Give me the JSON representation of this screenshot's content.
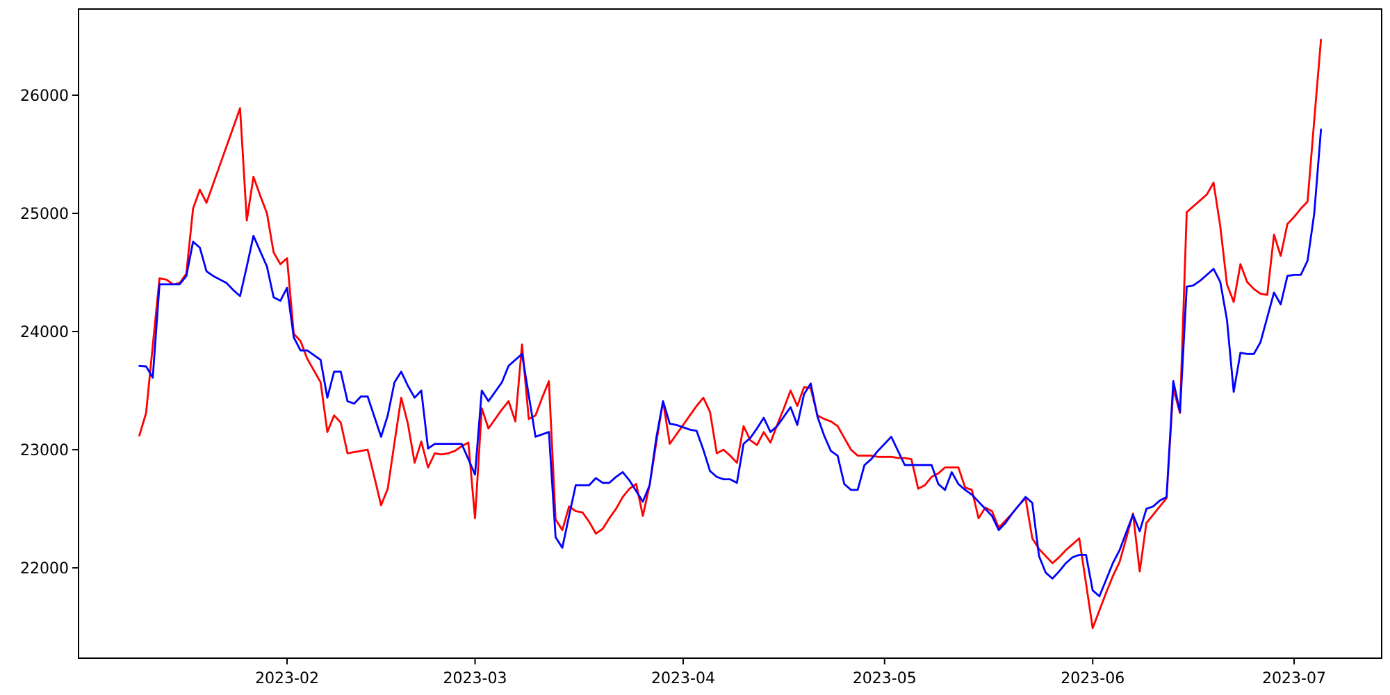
{
  "chart_data": {
    "type": "line",
    "title": "",
    "xlabel": "",
    "ylabel": "",
    "grid": false,
    "legend_position": "none",
    "background_color": "#ffffff",
    "spine_color": "#000000",
    "x_axis": {
      "start_date": "2023-01-10",
      "end_date": "2023-07-05",
      "tick_dates": [
        "2023-02-01",
        "2023-03-01",
        "2023-04-01",
        "2023-05-01",
        "2023-06-01",
        "2023-07-01"
      ],
      "tick_labels": [
        "2023-02",
        "2023-03",
        "2023-04",
        "2023-05",
        "2023-06",
        "2023-07"
      ],
      "xlim_days_from_start": [
        -9.06,
        185.04
      ]
    },
    "y_axis": {
      "tick_values": [
        22000,
        23000,
        24000,
        25000,
        26000
      ],
      "tick_labels": [
        "22000",
        "23000",
        "24000",
        "25000",
        "26000"
      ],
      "ylim": [
        21236,
        26729
      ]
    },
    "series": [
      {
        "name": "red",
        "color": "#ff0000",
        "start": "2023-01-10",
        "interval": "daily",
        "values": [
          23120,
          23310,
          23880,
          24450,
          24440,
          24400,
          24410,
          24490,
          25040,
          25200,
          25090,
          25250,
          25410,
          25570,
          25730,
          25890,
          24940,
          25310,
          25150,
          25000,
          24670,
          24570,
          24620,
          23980,
          23920,
          23770,
          23670,
          23570,
          23150,
          23290,
          23230,
          22970,
          22980,
          22990,
          23000,
          22770,
          22530,
          22670,
          23060,
          23440,
          23220,
          22890,
          23070,
          22850,
          22970,
          22960,
          22970,
          22990,
          23030,
          23060,
          22420,
          23350,
          23180,
          23260,
          23340,
          23410,
          23240,
          23890,
          23260,
          23290,
          23440,
          23580,
          22410,
          22320,
          22520,
          22480,
          22470,
          22390,
          22290,
          22330,
          22420,
          22500,
          22600,
          22670,
          22710,
          22440,
          22700,
          23060,
          23410,
          23050,
          23130,
          23210,
          23290,
          23370,
          23440,
          23320,
          22970,
          23000,
          22950,
          22890,
          23200,
          23080,
          23040,
          23150,
          23060,
          23210,
          23350,
          23500,
          23370,
          23530,
          23520,
          23290,
          23260,
          23240,
          23200,
          23100,
          23000,
          22950,
          22950,
          22950,
          22940,
          22940,
          22940,
          22930,
          22930,
          22920,
          22670,
          22700,
          22770,
          22800,
          22850,
          22850,
          22850,
          22680,
          22660,
          22420,
          22510,
          22480,
          22340,
          22400,
          22460,
          22530,
          22590,
          22250,
          22160,
          22100,
          22040,
          22090,
          22150,
          22200,
          22250,
          21870,
          21490,
          21640,
          21790,
          21930,
          22050,
          22250,
          22460,
          21970,
          22380,
          22450,
          22520,
          22590,
          23520,
          23310,
          25010,
          25060,
          25110,
          25160,
          25260,
          24890,
          24400,
          24250,
          24570,
          24420,
          24360,
          24320,
          24310,
          24820,
          24640,
          24910,
          24970,
          25040,
          25100,
          25790,
          26470
        ]
      },
      {
        "name": "blue",
        "color": "#0000ff",
        "start": "2023-01-10",
        "interval": "daily",
        "values": [
          23710,
          23705,
          23610,
          24400,
          24400,
          24400,
          24400,
          24470,
          24760,
          24710,
          24510,
          24470,
          24440,
          24410,
          24350,
          24300,
          24550,
          24810,
          24680,
          24550,
          24290,
          24260,
          24370,
          23950,
          23840,
          23840,
          23800,
          23760,
          23440,
          23660,
          23660,
          23410,
          23390,
          23450,
          23450,
          23280,
          23110,
          23290,
          23570,
          23660,
          23540,
          23440,
          23500,
          23010,
          23050,
          23050,
          23050,
          23050,
          23050,
          22920,
          22790,
          23500,
          23410,
          23490,
          23570,
          23710,
          23760,
          23810,
          23460,
          23110,
          23130,
          23150,
          22260,
          22170,
          22440,
          22700,
          22700,
          22700,
          22760,
          22720,
          22720,
          22770,
          22810,
          22740,
          22650,
          22560,
          22700,
          23100,
          23410,
          23220,
          23210,
          23190,
          23170,
          23160,
          23000,
          22820,
          22770,
          22750,
          22750,
          22720,
          23050,
          23100,
          23180,
          23270,
          23150,
          23200,
          23280,
          23360,
          23210,
          23470,
          23560,
          23280,
          23120,
          22990,
          22950,
          22710,
          22660,
          22660,
          22870,
          22920,
          22990,
          23050,
          23110,
          22990,
          22870,
          22870,
          22870,
          22870,
          22870,
          22710,
          22660,
          22810,
          22710,
          22660,
          22620,
          22560,
          22500,
          22440,
          22320,
          22380,
          22460,
          22530,
          22600,
          22550,
          22100,
          21960,
          21910,
          21970,
          22040,
          22090,
          22110,
          22110,
          21810,
          21760,
          21900,
          22040,
          22150,
          22300,
          22450,
          22310,
          22500,
          22520,
          22570,
          22600,
          23580,
          23320,
          24380,
          24390,
          24430,
          24480,
          24530,
          24420,
          24100,
          23490,
          23820,
          23810,
          23810,
          23910,
          24120,
          24330,
          24230,
          24470,
          24480,
          24480,
          24600,
          25000,
          25710
        ]
      }
    ]
  }
}
